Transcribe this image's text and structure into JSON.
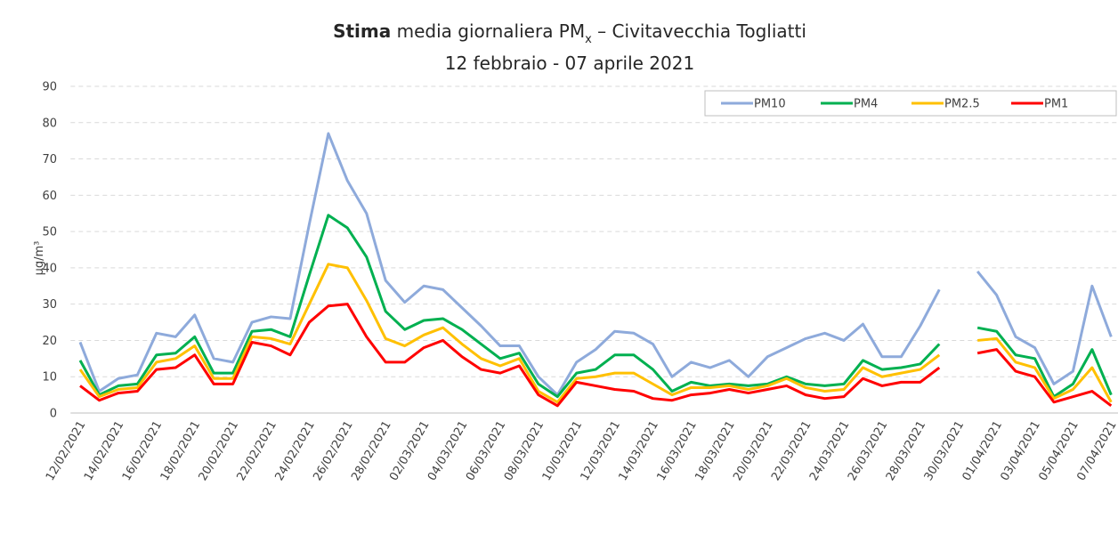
{
  "chart_data": {
    "type": "line",
    "title": {
      "bold": "Stima",
      "text": " media giornaliera PM",
      "subscript": "x",
      "rest": " – Civitavecchia Togliatti"
    },
    "subtitle": "12 febbraio - 07 aprile 2021",
    "y_label": "µg/m³",
    "categories": [
      "12/02/2021",
      null,
      "14/02/2021",
      null,
      "16/02/2021",
      null,
      "18/02/2021",
      null,
      "20/02/2021",
      null,
      "22/02/2021",
      null,
      "24/02/2021",
      null,
      "26/02/2021",
      null,
      "28/02/2021",
      null,
      "02/03/2021",
      null,
      "04/03/2021",
      null,
      "06/03/2021",
      null,
      "08/03/2021",
      null,
      "10/03/2021",
      null,
      "12/03/2021",
      null,
      "14/03/2021",
      null,
      "16/03/2021",
      null,
      "18/03/2021",
      null,
      "20/03/2021",
      null,
      "22/03/2021",
      null,
      "24/03/2021",
      null,
      "26/03/2021",
      null,
      "28/03/2021",
      null,
      "30/03/2021",
      null,
      "01/04/2021",
      null,
      "03/04/2021",
      null,
      "05/04/2021",
      null,
      "07/04/2021"
    ],
    "series": [
      {
        "name": "PM10",
        "color": "#8eaadb",
        "values": [
          19.5,
          6,
          9.5,
          10.5,
          22,
          21,
          27,
          15,
          14,
          25,
          26.5,
          26,
          52,
          77,
          64,
          55,
          36.5,
          30.5,
          35,
          34,
          29,
          24,
          18.5,
          18.5,
          10,
          5,
          14,
          17.5,
          22.5,
          22,
          19,
          10,
          14,
          12.5,
          14.5,
          10,
          15.5,
          18,
          20.5,
          22,
          20,
          24.5,
          15.5,
          15.5,
          24,
          34,
          null,
          39,
          32.5,
          21,
          18,
          8,
          11.5,
          35,
          21
        ]
      },
      {
        "name": "PM4",
        "color": "#00b050",
        "values": [
          14.5,
          5,
          7.5,
          8,
          16,
          16.5,
          21,
          11,
          11,
          22.5,
          23,
          21,
          38,
          54.5,
          51,
          43,
          28,
          23,
          25.5,
          26,
          23,
          19,
          15,
          16.5,
          8,
          4.5,
          11,
          12,
          16,
          16,
          12,
          6,
          8.5,
          7.5,
          8,
          7.5,
          8,
          10,
          8,
          7.5,
          8,
          14.5,
          12,
          12.5,
          13.5,
          19,
          null,
          23.5,
          22.5,
          16,
          15,
          4.5,
          8,
          17.5,
          5
        ]
      },
      {
        "name": "PM2.5",
        "color": "#ffc000",
        "values": [
          12,
          4.5,
          6.5,
          7,
          14,
          15,
          18.5,
          9.5,
          9.5,
          21,
          20.5,
          19,
          30,
          41,
          40,
          31,
          20.5,
          18.5,
          21.5,
          23.5,
          19,
          15,
          13,
          15,
          6,
          3,
          9.5,
          10,
          11,
          11,
          8,
          5,
          7,
          7,
          7.5,
          6.5,
          7.5,
          9.5,
          7,
          6,
          6.5,
          12.5,
          10,
          11,
          12,
          16,
          null,
          20,
          20.5,
          14,
          12.5,
          4,
          6.5,
          12.5,
          3
        ]
      },
      {
        "name": "PM1",
        "color": "#ff0000",
        "values": [
          7.5,
          3.5,
          5.5,
          6,
          12,
          12.5,
          16,
          8,
          8,
          19.5,
          18.5,
          16,
          25,
          29.5,
          30,
          21,
          14,
          14,
          18,
          20,
          15.5,
          12,
          11,
          13,
          5,
          2,
          8.5,
          7.5,
          6.5,
          6,
          4,
          3.5,
          5,
          5.5,
          6.5,
          5.5,
          6.5,
          7.5,
          5,
          4,
          4.5,
          9.5,
          7.5,
          8.5,
          8.5,
          12.5,
          null,
          16.5,
          17.5,
          11.5,
          10,
          3,
          4.5,
          6,
          2
        ]
      }
    ],
    "ylim": [
      0,
      90
    ],
    "yticks": [
      0,
      10,
      20,
      30,
      40,
      50,
      60,
      70,
      80,
      90
    ],
    "grid": true,
    "legend": "top-right"
  }
}
